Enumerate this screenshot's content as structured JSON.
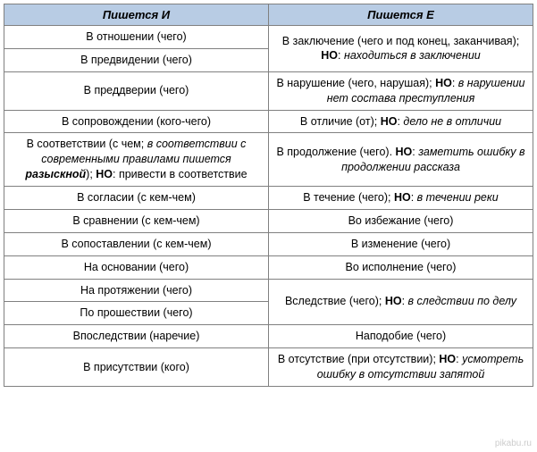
{
  "header": {
    "col_left": "Пишется И",
    "col_right": "Пишется Е"
  },
  "rows": [
    {
      "left": "В отношении (чего)",
      "right": "В заключение (чего и под конец, заканчивая); <b>НО</b>: <i>находиться в заключении</i>",
      "left_rows": 1,
      "right_rows": 2
    },
    {
      "left": "В предвидении (чего)",
      "skip_right": true
    },
    {
      "left": "В преддверии (чего)",
      "right": "В нарушение (чего, нарушая); <b>НО</b>: <i>в нарушении нет состава преступления</i>"
    },
    {
      "left": "В сопровождении (кого-чего)",
      "right": "В отличие (от); <b>НО</b>: <i>дело не в отличии</i>"
    },
    {
      "left": "В соответствии (с чем; <i>в соответствии с современными правилами пишется <b>разыскной</b></i>); <b>НО</b>: привести в соответствие",
      "right": "В продолжение (чего). <b>НО</b>: <i>заметить ошибку в продолжении рассказа</i>"
    },
    {
      "left": "В согласии (с кем-чем)",
      "right": "В течение (чего); <b>НО</b>: <i>в течении реки</i>"
    },
    {
      "left": "В сравнении (с кем-чем)",
      "right": "Во избежание (чего)"
    },
    {
      "left": "В сопоставлении (с кем-чем)",
      "right": "В изменение (чего)"
    },
    {
      "left": "На основании (чего)",
      "right": "Во исполнение (чего)"
    },
    {
      "left": "На протяжении (чего)",
      "right": "Вследствие (чего); <b>НО</b>: <i>в следствии по делу</i>",
      "left_rows": 1,
      "right_rows": 2
    },
    {
      "left": "По прошествии (чего)",
      "skip_right": true
    },
    {
      "left": "Впоследствии (наречие)",
      "right": "Наподобие (чего)"
    },
    {
      "left": "В присутствии (кого)",
      "right": "В отсутствие (при отсутствии); <b>НО</b>: <i>усмотреть ошибку в отсутствии запятой</i>"
    }
  ],
  "watermark": "pikabu.ru"
}
